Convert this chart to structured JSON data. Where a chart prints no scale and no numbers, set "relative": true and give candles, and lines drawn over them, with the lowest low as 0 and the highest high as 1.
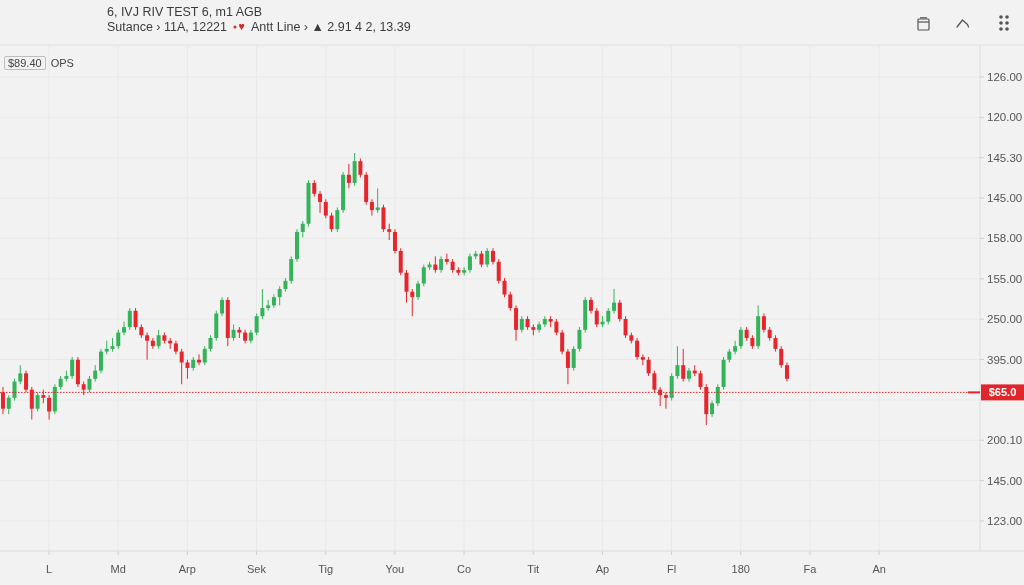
{
  "chart_data": {
    "type": "candlestick",
    "title": "6, IVJ RIV TEST 6, m1 AGB",
    "subtitle": "Sutance › 11A, 12221 Antt Line › ▲ 2.91 4 2, 13.39",
    "annotations": [
      "$89.40 OPS",
      "$65.0",
      "126.00",
      "120.00",
      "145.30",
      "145.00",
      "158.00",
      "155.00",
      "250.00",
      "395.00",
      "200.10",
      "145.00",
      "123.00"
    ],
    "relative": true,
    "grid": true,
    "ref_lines": [
      {
        "axis": "y",
        "value": 0.12,
        "color": "#e0262b",
        "line_style": "dotted"
      }
    ],
    "categories": [
      null,
      null,
      null,
      null,
      null,
      null,
      null,
      null,
      "L",
      null,
      null,
      null,
      null,
      null,
      null,
      null,
      null,
      null,
      null,
      null,
      "Md",
      null,
      null,
      null,
      null,
      null,
      null,
      null,
      null,
      null,
      null,
      null,
      "Arp",
      null,
      null,
      null,
      null,
      null,
      null,
      null,
      null,
      null,
      null,
      null,
      "Sek",
      null,
      null,
      null,
      null,
      null,
      null,
      null,
      null,
      null,
      null,
      null,
      "Tig",
      null,
      null,
      null,
      null,
      null,
      null,
      null,
      null,
      null,
      null,
      null,
      "You",
      null,
      null,
      null,
      null,
      null,
      null,
      null,
      null,
      null,
      null,
      null,
      "Co",
      null,
      null,
      null,
      null,
      null,
      null,
      null,
      null,
      null,
      null,
      null,
      "Tit",
      null,
      null,
      null,
      null,
      null,
      null,
      null,
      null,
      null,
      null,
      null,
      "Ap",
      null,
      null,
      null,
      null,
      null,
      null,
      null,
      null,
      null,
      null,
      null,
      "Fl",
      null,
      null,
      null,
      null,
      null,
      null,
      null,
      null,
      null,
      null,
      null,
      "180",
      null,
      null,
      null,
      null,
      null,
      null,
      null,
      null,
      null,
      null,
      null,
      "Fa",
      null,
      null,
      null,
      null,
      null,
      null,
      null,
      null,
      null,
      null,
      null,
      "An",
      null,
      null,
      null,
      null,
      null,
      null,
      null,
      null,
      null,
      null,
      null,
      null,
      null,
      null,
      null,
      null,
      null
    ],
    "ohlc": [
      [
        0.12,
        0.14,
        0.04,
        0.06
      ],
      [
        0.06,
        0.11,
        0.04,
        0.1
      ],
      [
        0.1,
        0.17,
        0.09,
        0.16
      ],
      [
        0.16,
        0.22,
        0.15,
        0.19
      ],
      [
        0.19,
        0.2,
        0.12,
        0.13
      ],
      [
        0.13,
        0.14,
        0.02,
        0.06
      ],
      [
        0.06,
        0.12,
        0.05,
        0.11
      ],
      [
        0.11,
        0.13,
        0.08,
        0.1
      ],
      [
        0.1,
        0.11,
        0.02,
        0.05
      ],
      [
        0.05,
        0.15,
        0.04,
        0.14
      ],
      [
        0.14,
        0.18,
        0.13,
        0.17
      ],
      [
        0.17,
        0.2,
        0.16,
        0.18
      ],
      [
        0.18,
        0.25,
        0.17,
        0.24
      ],
      [
        0.24,
        0.25,
        0.14,
        0.15
      ],
      [
        0.15,
        0.16,
        0.11,
        0.13
      ],
      [
        0.13,
        0.18,
        0.12,
        0.17
      ],
      [
        0.17,
        0.22,
        0.16,
        0.2
      ],
      [
        0.2,
        0.28,
        0.19,
        0.27
      ],
      [
        0.27,
        0.31,
        0.26,
        0.28
      ],
      [
        0.28,
        0.32,
        0.27,
        0.29
      ],
      [
        0.29,
        0.35,
        0.28,
        0.34
      ],
      [
        0.34,
        0.38,
        0.33,
        0.36
      ],
      [
        0.36,
        0.43,
        0.35,
        0.42
      ],
      [
        0.42,
        0.43,
        0.35,
        0.36
      ],
      [
        0.36,
        0.37,
        0.32,
        0.33
      ],
      [
        0.33,
        0.34,
        0.24,
        0.31
      ],
      [
        0.31,
        0.32,
        0.28,
        0.29
      ],
      [
        0.29,
        0.35,
        0.28,
        0.33
      ],
      [
        0.33,
        0.34,
        0.3,
        0.31
      ],
      [
        0.31,
        0.32,
        0.28,
        0.3
      ],
      [
        0.3,
        0.31,
        0.26,
        0.27
      ],
      [
        0.27,
        0.28,
        0.15,
        0.23
      ],
      [
        0.23,
        0.24,
        0.17,
        0.21
      ],
      [
        0.21,
        0.25,
        0.2,
        0.24
      ],
      [
        0.24,
        0.26,
        0.22,
        0.23
      ],
      [
        0.23,
        0.29,
        0.22,
        0.28
      ],
      [
        0.28,
        0.33,
        0.27,
        0.32
      ],
      [
        0.32,
        0.42,
        0.31,
        0.41
      ],
      [
        0.41,
        0.47,
        0.4,
        0.46
      ],
      [
        0.46,
        0.47,
        0.29,
        0.32
      ],
      [
        0.32,
        0.37,
        0.31,
        0.35
      ],
      [
        0.35,
        0.36,
        0.32,
        0.34
      ],
      [
        0.34,
        0.35,
        0.3,
        0.31
      ],
      [
        0.31,
        0.35,
        0.3,
        0.34
      ],
      [
        0.34,
        0.41,
        0.33,
        0.4
      ],
      [
        0.4,
        0.5,
        0.39,
        0.43
      ],
      [
        0.43,
        0.46,
        0.42,
        0.44
      ],
      [
        0.44,
        0.48,
        0.43,
        0.47
      ],
      [
        0.47,
        0.51,
        0.44,
        0.5
      ],
      [
        0.5,
        0.54,
        0.49,
        0.53
      ],
      [
        0.53,
        0.62,
        0.52,
        0.61
      ],
      [
        0.61,
        0.72,
        0.6,
        0.71
      ],
      [
        0.71,
        0.75,
        0.69,
        0.74
      ],
      [
        0.74,
        0.9,
        0.73,
        0.89
      ],
      [
        0.89,
        0.9,
        0.84,
        0.85
      ],
      [
        0.85,
        0.86,
        0.78,
        0.82
      ],
      [
        0.82,
        0.83,
        0.76,
        0.77
      ],
      [
        0.77,
        0.78,
        0.71,
        0.72
      ],
      [
        0.72,
        0.8,
        0.71,
        0.79
      ],
      [
        0.79,
        0.93,
        0.78,
        0.92
      ],
      [
        0.92,
        0.96,
        0.87,
        0.89
      ],
      [
        0.89,
        1.0,
        0.88,
        0.97
      ],
      [
        0.97,
        0.98,
        0.91,
        0.92
      ],
      [
        0.92,
        0.93,
        0.81,
        0.82
      ],
      [
        0.82,
        0.83,
        0.77,
        0.79
      ],
      [
        0.79,
        0.87,
        0.78,
        0.8
      ],
      [
        0.8,
        0.81,
        0.71,
        0.72
      ],
      [
        0.72,
        0.74,
        0.68,
        0.71
      ],
      [
        0.71,
        0.72,
        0.63,
        0.64
      ],
      [
        0.64,
        0.65,
        0.55,
        0.56
      ],
      [
        0.56,
        0.57,
        0.45,
        0.49
      ],
      [
        0.49,
        0.5,
        0.4,
        0.47
      ],
      [
        0.47,
        0.53,
        0.46,
        0.52
      ],
      [
        0.52,
        0.59,
        0.51,
        0.58
      ],
      [
        0.58,
        0.6,
        0.57,
        0.59
      ],
      [
        0.59,
        0.62,
        0.56,
        0.57
      ],
      [
        0.57,
        0.62,
        0.56,
        0.61
      ],
      [
        0.61,
        0.63,
        0.59,
        0.6
      ],
      [
        0.6,
        0.61,
        0.56,
        0.57
      ],
      [
        0.57,
        0.58,
        0.55,
        0.56
      ],
      [
        0.56,
        0.58,
        0.55,
        0.57
      ],
      [
        0.57,
        0.63,
        0.56,
        0.62
      ],
      [
        0.62,
        0.64,
        0.61,
        0.63
      ],
      [
        0.63,
        0.64,
        0.58,
        0.59
      ],
      [
        0.59,
        0.65,
        0.58,
        0.64
      ],
      [
        0.64,
        0.65,
        0.59,
        0.6
      ],
      [
        0.6,
        0.61,
        0.52,
        0.53
      ],
      [
        0.53,
        0.54,
        0.47,
        0.48
      ],
      [
        0.48,
        0.49,
        0.42,
        0.43
      ],
      [
        0.43,
        0.44,
        0.31,
        0.35
      ],
      [
        0.35,
        0.4,
        0.34,
        0.39
      ],
      [
        0.39,
        0.4,
        0.35,
        0.36
      ],
      [
        0.36,
        0.37,
        0.33,
        0.35
      ],
      [
        0.35,
        0.38,
        0.34,
        0.37
      ],
      [
        0.37,
        0.4,
        0.36,
        0.39
      ],
      [
        0.39,
        0.4,
        0.36,
        0.38
      ],
      [
        0.38,
        0.39,
        0.33,
        0.34
      ],
      [
        0.34,
        0.35,
        0.26,
        0.27
      ],
      [
        0.27,
        0.28,
        0.15,
        0.21
      ],
      [
        0.21,
        0.29,
        0.2,
        0.28
      ],
      [
        0.28,
        0.36,
        0.27,
        0.35
      ],
      [
        0.35,
        0.47,
        0.34,
        0.46
      ],
      [
        0.46,
        0.47,
        0.41,
        0.42
      ],
      [
        0.42,
        0.43,
        0.36,
        0.37
      ],
      [
        0.37,
        0.4,
        0.36,
        0.38
      ],
      [
        0.38,
        0.43,
        0.37,
        0.42
      ],
      [
        0.42,
        0.5,
        0.41,
        0.45
      ],
      [
        0.45,
        0.46,
        0.38,
        0.39
      ],
      [
        0.39,
        0.4,
        0.32,
        0.33
      ],
      [
        0.33,
        0.34,
        0.3,
        0.31
      ],
      [
        0.31,
        0.32,
        0.24,
        0.25
      ],
      [
        0.25,
        0.26,
        0.22,
        0.24
      ],
      [
        0.24,
        0.25,
        0.18,
        0.19
      ],
      [
        0.19,
        0.2,
        0.12,
        0.13
      ],
      [
        0.13,
        0.14,
        0.07,
        0.11
      ],
      [
        0.11,
        0.12,
        0.06,
        0.1
      ],
      [
        0.1,
        0.19,
        0.09,
        0.18
      ],
      [
        0.18,
        0.29,
        0.17,
        0.22
      ],
      [
        0.22,
        0.28,
        0.16,
        0.17
      ],
      [
        0.17,
        0.21,
        0.16,
        0.2
      ],
      [
        0.2,
        0.22,
        0.18,
        0.19
      ],
      [
        0.19,
        0.2,
        0.13,
        0.14
      ],
      [
        0.14,
        0.15,
        0.0,
        0.04
      ],
      [
        0.04,
        0.09,
        0.03,
        0.08
      ],
      [
        0.08,
        0.15,
        0.07,
        0.14
      ],
      [
        0.14,
        0.25,
        0.13,
        0.24
      ],
      [
        0.24,
        0.28,
        0.23,
        0.27
      ],
      [
        0.27,
        0.31,
        0.26,
        0.29
      ],
      [
        0.29,
        0.36,
        0.28,
        0.35
      ],
      [
        0.35,
        0.36,
        0.31,
        0.32
      ],
      [
        0.32,
        0.33,
        0.28,
        0.29
      ],
      [
        0.29,
        0.44,
        0.28,
        0.4
      ],
      [
        0.4,
        0.41,
        0.34,
        0.35
      ],
      [
        0.35,
        0.36,
        0.31,
        0.32
      ],
      [
        0.32,
        0.33,
        0.27,
        0.28
      ],
      [
        0.28,
        0.29,
        0.21,
        0.22
      ],
      [
        0.22,
        0.23,
        0.16,
        0.17
      ],
      null,
      null,
      null,
      null,
      null,
      null,
      null,
      null,
      null,
      null,
      null,
      null,
      null,
      null,
      null,
      null,
      null,
      null,
      null,
      null,
      null,
      null,
      null,
      null,
      null,
      null,
      null,
      null,
      null,
      null,
      null,
      null,
      null
    ],
    "colors": [
      "#e5262d",
      "#34b35a",
      "#34b35a",
      "#34b35a",
      "#e5262d",
      "#e5262d",
      "#34b35a",
      "#e5262d",
      "#e5262d",
      "#34b35a",
      "#34b35a",
      "#34b35a",
      "#34b35a",
      "#e5262d",
      "#e5262d",
      "#34b35a",
      "#34b35a",
      "#34b35a",
      "#34b35a",
      "#34b35a",
      "#34b35a",
      "#34b35a",
      "#34b35a",
      "#e5262d",
      "#e5262d",
      "#e5262d",
      "#e5262d",
      "#34b35a",
      "#e5262d",
      "#e5262d",
      "#e5262d",
      "#e5262d",
      "#e5262d",
      "#34b35a",
      "#e5262d",
      "#34b35a",
      "#34b35a",
      "#34b35a",
      "#34b35a",
      "#e5262d",
      "#34b35a",
      "#e5262d",
      "#e5262d",
      "#34b35a",
      "#34b35a",
      "#34b35a",
      "#34b35a",
      "#34b35a",
      "#34b35a",
      "#34b35a",
      "#34b35a",
      "#34b35a",
      "#34b35a",
      "#34b35a",
      "#e5262d",
      "#e5262d",
      "#e5262d",
      "#e5262d",
      "#34b35a",
      "#34b35a",
      "#e5262d",
      "#34b35a",
      "#e5262d",
      "#e5262d",
      "#e5262d",
      "#34b35a",
      "#e5262d",
      "#e5262d",
      "#e5262d",
      "#e5262d",
      "#e5262d",
      "#e5262d",
      "#34b35a",
      "#34b35a",
      "#34b35a",
      "#e5262d",
      "#34b35a",
      "#e5262d",
      "#e5262d",
      "#e5262d",
      "#34b35a",
      "#34b35a",
      "#34b35a",
      "#e5262d",
      "#34b35a",
      "#e5262d",
      "#e5262d",
      "#e5262d",
      "#e5262d",
      "#e5262d",
      "#34b35a",
      "#e5262d",
      "#e5262d",
      "#34b35a",
      "#34b35a",
      "#e5262d",
      "#e5262d",
      "#e5262d",
      "#e5262d",
      "#34b35a",
      "#34b35a",
      "#34b35a",
      "#e5262d",
      "#e5262d",
      "#34b35a",
      "#34b35a",
      "#34b35a",
      "#e5262d",
      "#e5262d",
      "#e5262d",
      "#e5262d",
      "#e5262d",
      "#e5262d",
      "#e5262d",
      "#e5262d",
      "#e5262d",
      "#34b35a",
      "#34b35a",
      "#e5262d",
      "#34b35a",
      "#e5262d",
      "#e5262d",
      "#e5262d",
      "#34b35a",
      "#34b35a",
      "#34b35a",
      "#34b35a",
      "#34b35a",
      "#34b35a",
      "#e5262d",
      "#e5262d",
      "#34b35a",
      "#e5262d",
      "#e5262d",
      "#e5262d",
      "#e5262d",
      "#e5262d",
      null,
      null,
      null,
      null,
      null,
      null,
      null,
      null,
      null,
      null,
      null,
      null,
      null,
      null,
      null,
      null,
      null,
      null,
      null,
      null,
      null,
      null,
      null,
      null,
      null,
      null,
      null,
      null,
      null,
      null,
      null,
      null,
      null
    ]
  }
}
